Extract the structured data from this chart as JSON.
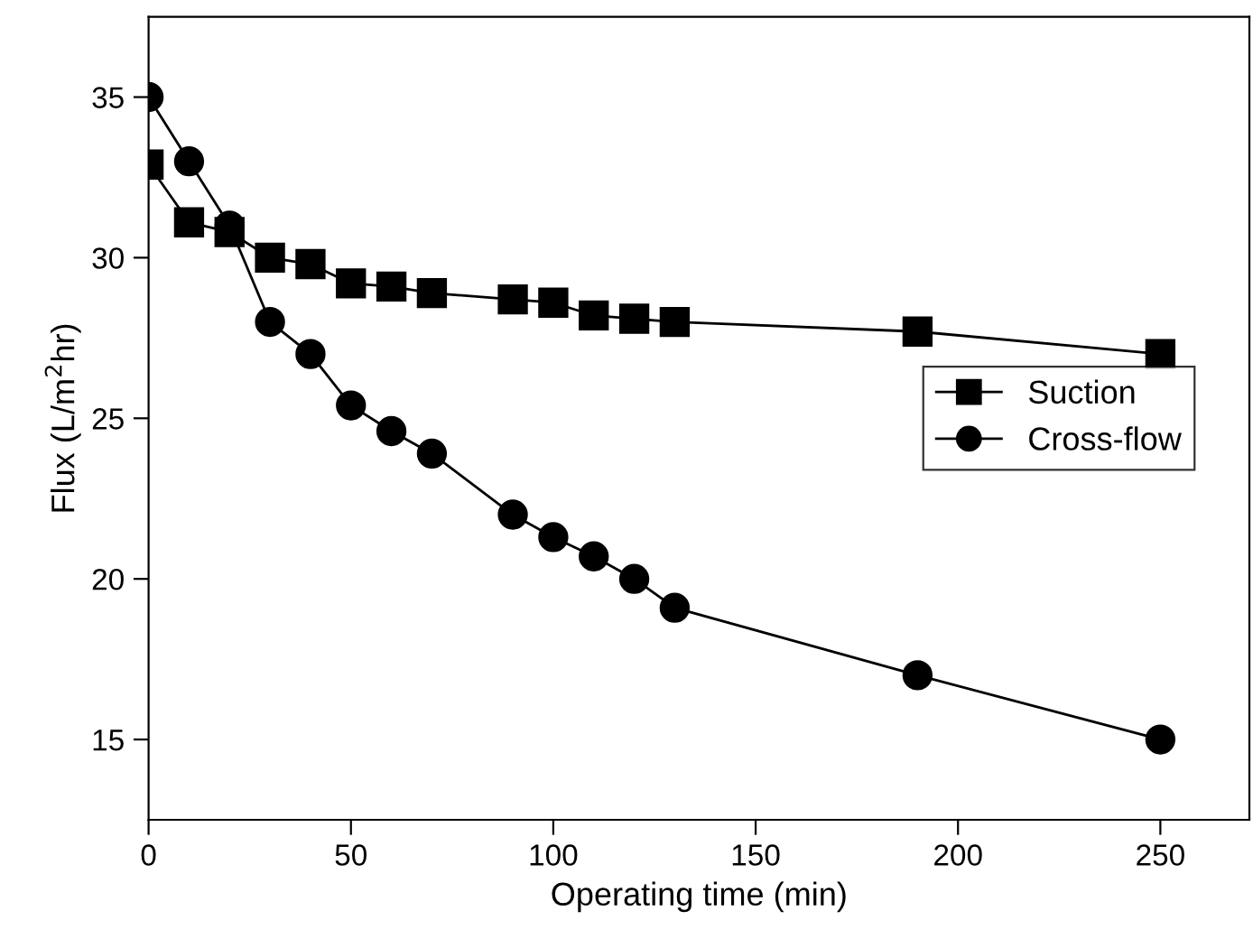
{
  "chart_data": {
    "type": "line",
    "xlabel": "Operating time (min)",
    "ylabel": "Flux (L/m$^{2}$hr)",
    "xlim": [
      0,
      272
    ],
    "xticks": [
      0,
      50,
      100,
      150,
      200,
      250
    ],
    "ylim": [
      12.5,
      37.5
    ],
    "yticks": [
      15,
      20,
      25,
      30,
      35
    ],
    "grid": false,
    "legend": "right",
    "line_style": "solid",
    "series": [
      {
        "name": "Suction",
        "color": "#000000",
        "marker": "square",
        "x": [
          0,
          10,
          20,
          30,
          40,
          50,
          60,
          70,
          90,
          100,
          110,
          120,
          130,
          190,
          250
        ],
        "values": [
          32.9,
          31.1,
          30.8,
          30.0,
          29.8,
          29.2,
          29.1,
          28.9,
          28.7,
          28.6,
          28.2,
          28.1,
          28.0,
          27.7,
          27.0
        ]
      },
      {
        "name": "Cross-flow",
        "color": "#000000",
        "marker": "circle",
        "x": [
          0,
          10,
          20,
          30,
          40,
          50,
          60,
          70,
          90,
          100,
          110,
          120,
          130,
          190,
          250
        ],
        "values": [
          35.0,
          33.0,
          31.0,
          28.0,
          27.0,
          25.4,
          24.6,
          23.9,
          22.0,
          21.3,
          20.7,
          20.0,
          19.1,
          17.0,
          15.0
        ]
      }
    ]
  }
}
